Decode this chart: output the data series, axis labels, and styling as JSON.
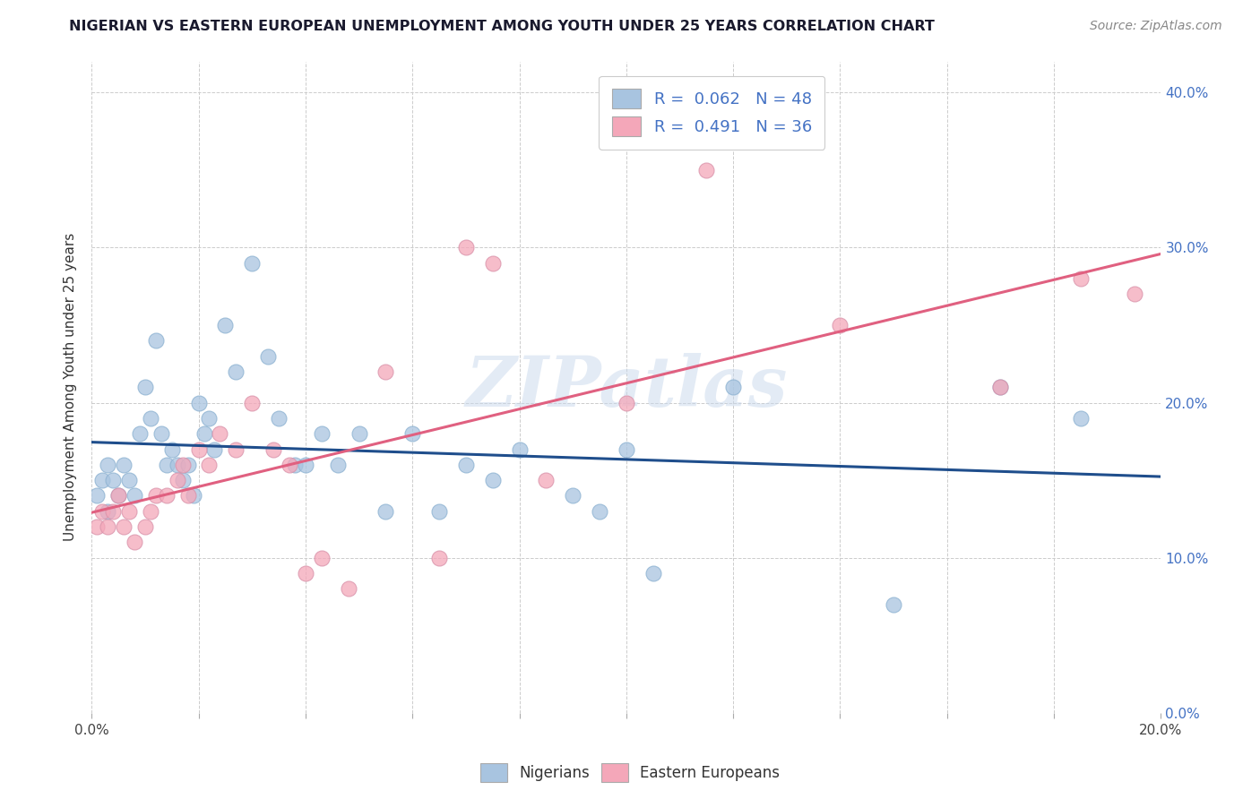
{
  "title": "NIGERIAN VS EASTERN EUROPEAN UNEMPLOYMENT AMONG YOUTH UNDER 25 YEARS CORRELATION CHART",
  "source": "Source: ZipAtlas.com",
  "ylabel": "Unemployment Among Youth under 25 years",
  "xlim": [
    0.0,
    0.2
  ],
  "ylim": [
    0.0,
    0.42
  ],
  "x_ticks": [
    0.0,
    0.02,
    0.04,
    0.06,
    0.08,
    0.1,
    0.12,
    0.14,
    0.16,
    0.18,
    0.2
  ],
  "y_ticks": [
    0.0,
    0.1,
    0.2,
    0.3,
    0.4
  ],
  "nigerians_color": "#a8c4e0",
  "eastern_color": "#f4a7b9",
  "nigerian_line_color": "#1f4e8c",
  "eastern_line_color": "#e06080",
  "R_nigerian": 0.062,
  "N_nigerian": 48,
  "R_eastern": 0.491,
  "N_eastern": 36,
  "watermark": "ZIPatlas",
  "nigerians_x": [
    0.001,
    0.002,
    0.003,
    0.003,
    0.004,
    0.005,
    0.006,
    0.007,
    0.008,
    0.009,
    0.01,
    0.011,
    0.012,
    0.013,
    0.014,
    0.015,
    0.016,
    0.017,
    0.018,
    0.019,
    0.02,
    0.021,
    0.022,
    0.023,
    0.025,
    0.027,
    0.03,
    0.033,
    0.035,
    0.038,
    0.04,
    0.043,
    0.046,
    0.05,
    0.055,
    0.06,
    0.065,
    0.07,
    0.075,
    0.08,
    0.09,
    0.095,
    0.1,
    0.105,
    0.12,
    0.15,
    0.17,
    0.185
  ],
  "nigerians_y": [
    0.14,
    0.15,
    0.16,
    0.13,
    0.15,
    0.14,
    0.16,
    0.15,
    0.14,
    0.18,
    0.21,
    0.19,
    0.24,
    0.18,
    0.16,
    0.17,
    0.16,
    0.15,
    0.16,
    0.14,
    0.2,
    0.18,
    0.19,
    0.17,
    0.25,
    0.22,
    0.29,
    0.23,
    0.19,
    0.16,
    0.16,
    0.18,
    0.16,
    0.18,
    0.13,
    0.18,
    0.13,
    0.16,
    0.15,
    0.17,
    0.14,
    0.13,
    0.17,
    0.09,
    0.21,
    0.07,
    0.21,
    0.19
  ],
  "eastern_x": [
    0.001,
    0.002,
    0.003,
    0.004,
    0.005,
    0.006,
    0.007,
    0.008,
    0.01,
    0.011,
    0.012,
    0.014,
    0.016,
    0.017,
    0.018,
    0.02,
    0.022,
    0.024,
    0.027,
    0.03,
    0.034,
    0.037,
    0.04,
    0.043,
    0.048,
    0.055,
    0.065,
    0.07,
    0.075,
    0.085,
    0.1,
    0.115,
    0.14,
    0.17,
    0.185,
    0.195
  ],
  "eastern_y": [
    0.12,
    0.13,
    0.12,
    0.13,
    0.14,
    0.12,
    0.13,
    0.11,
    0.12,
    0.13,
    0.14,
    0.14,
    0.15,
    0.16,
    0.14,
    0.17,
    0.16,
    0.18,
    0.17,
    0.2,
    0.17,
    0.16,
    0.09,
    0.1,
    0.08,
    0.22,
    0.1,
    0.3,
    0.29,
    0.15,
    0.2,
    0.35,
    0.25,
    0.21,
    0.28,
    0.27
  ]
}
